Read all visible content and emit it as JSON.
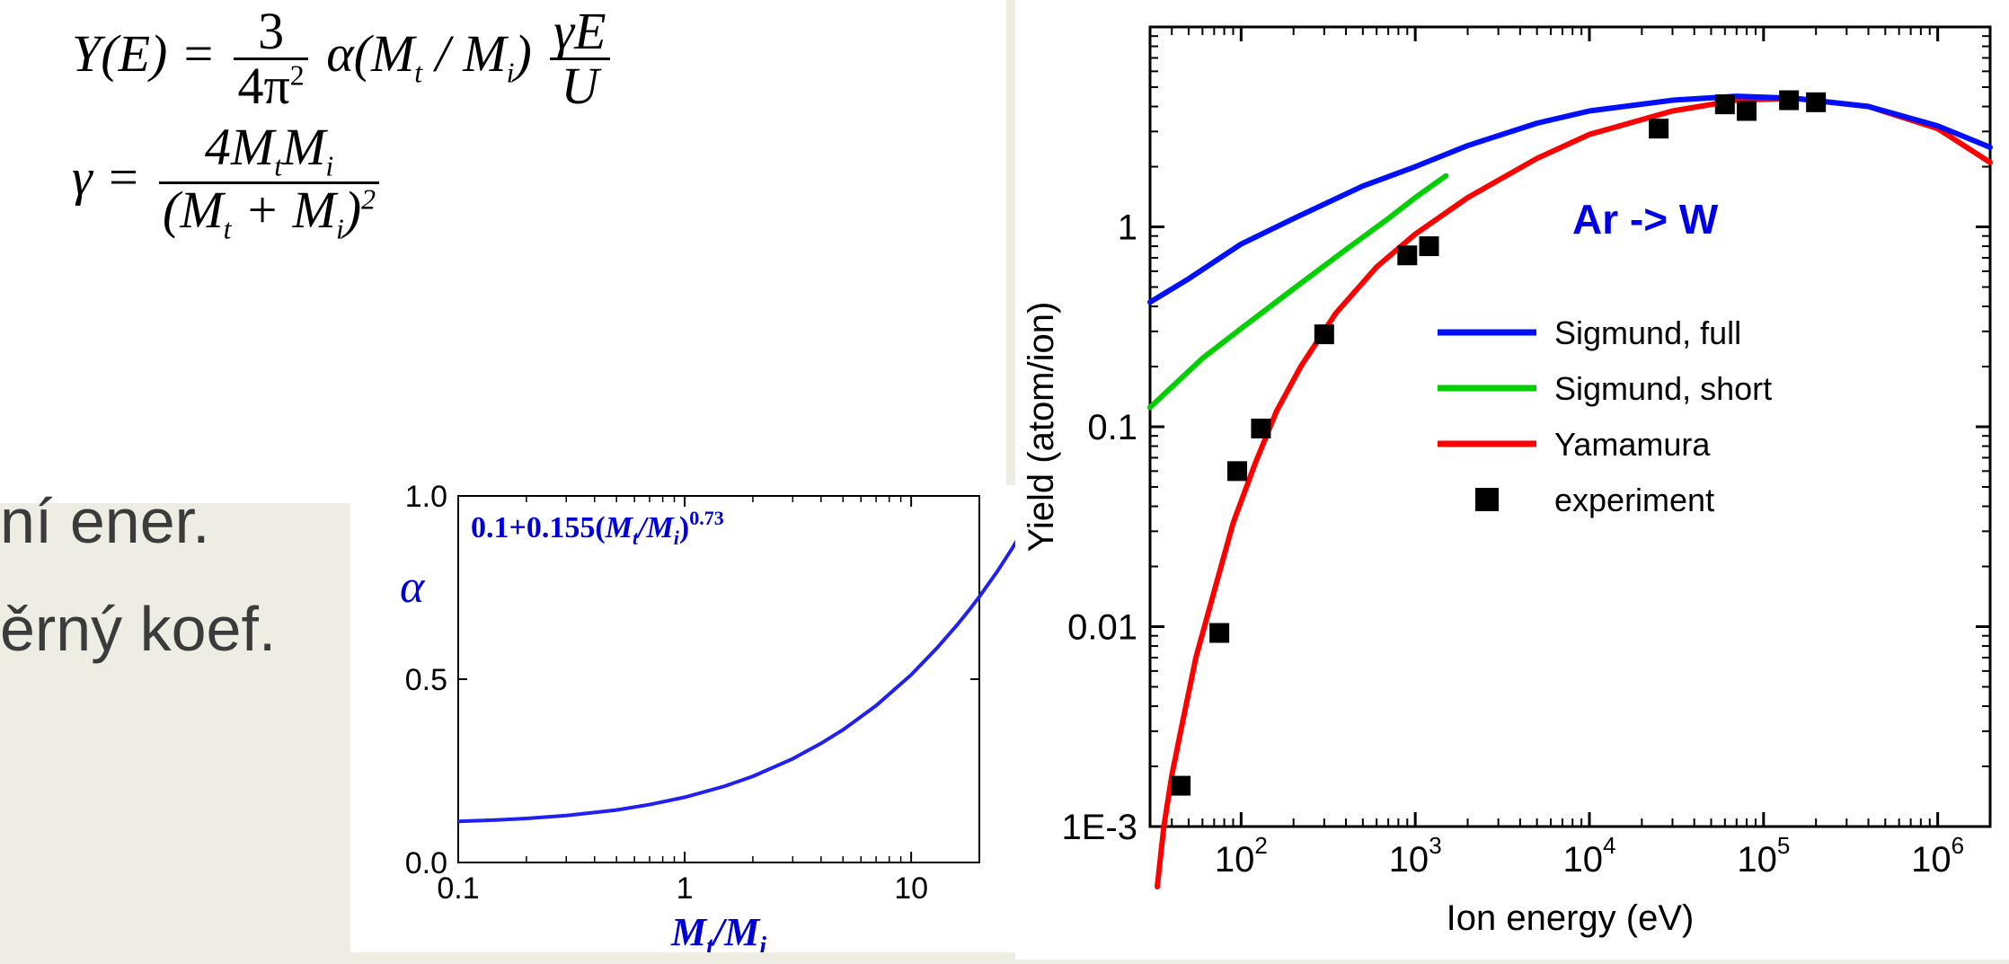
{
  "formulas": {
    "line1_left": "Y(E) =",
    "line1_frac_num": "3",
    "line1_frac_den": "4π",
    "line1_frac_den_sup": "2",
    "line1_mid": " α(M",
    "line1_mid_sub_t": "t",
    "line1_mid_sep": " / M",
    "line1_mid_sub_i": "i",
    "line1_mid_close": ") ",
    "line1_frac2_num": "γE",
    "line1_frac2_den": "U",
    "line2_left": "γ =",
    "line2_num_a": "4M",
    "line2_num_t": "t",
    "line2_num_b": "M",
    "line2_num_i": "i",
    "line2_den_a": "(M",
    "line2_den_t": "t",
    "line2_den_b": " + M",
    "line2_den_i": "i",
    "line2_den_c": ")",
    "line2_den_sup": "2"
  },
  "side": {
    "l1": "ní ener.",
    "l2": "ěrný koef."
  },
  "alpha_chart": {
    "type": "line",
    "symbol": "α",
    "formula_a": "0.1+0.155(",
    "formula_b": "M",
    "formula_b_sub": "t",
    "formula_c": "/M",
    "formula_c_sub": "i",
    "formula_d": ")",
    "formula_exp": "0.73",
    "xlabel_a": "M",
    "xlabel_a_sub": "t",
    "xlabel_b": "/M",
    "xlabel_b_sub": "i",
    "xlim": [
      0.1,
      20
    ],
    "ylim": [
      0.0,
      1.0
    ],
    "xticks": [
      0.1,
      1,
      10
    ],
    "xticklabels": [
      "0.1",
      "1",
      "10"
    ],
    "yticks": [
      0.0,
      0.5,
      1.0
    ],
    "yticklabels": [
      "0.0",
      "0.5",
      "1.0"
    ],
    "line_color": "#2020f0",
    "line_width": 4,
    "background": "#ffffff",
    "axis_color": "#000000",
    "label_color": "#0000d8",
    "curve": [
      [
        0.1,
        0.112
      ],
      [
        0.15,
        0.116
      ],
      [
        0.2,
        0.12
      ],
      [
        0.3,
        0.128
      ],
      [
        0.5,
        0.143
      ],
      [
        0.7,
        0.158
      ],
      [
        1.0,
        0.178
      ],
      [
        1.5,
        0.208
      ],
      [
        2.0,
        0.235
      ],
      [
        3.0,
        0.283
      ],
      [
        4.0,
        0.325
      ],
      [
        5.0,
        0.362
      ],
      [
        7.0,
        0.428
      ],
      [
        10.0,
        0.512
      ],
      [
        13.0,
        0.585
      ],
      [
        16.0,
        0.649
      ],
      [
        18.0,
        0.688
      ],
      [
        20.0,
        0.725
      ],
      [
        24.0,
        0.794
      ],
      [
        28.0,
        0.858
      ],
      [
        32.0,
        0.918
      ],
      [
        36.0,
        0.974
      ],
      [
        38.0,
        1.0
      ]
    ]
  },
  "main_chart": {
    "type": "line+scatter",
    "title": "Ar -> W",
    "title_color": "#0000e8",
    "title_fontsize": 46,
    "title_bold": true,
    "xlabel": "Ion energy (eV)",
    "ylabel": "Yield (atom/ion)",
    "label_fontsize": 40,
    "xlim": [
      30,
      2000000
    ],
    "ylim": [
      0.001,
      10
    ],
    "xticks": [
      100,
      1000,
      10000,
      100000,
      1000000
    ],
    "xticklabels": [
      "10",
      "10",
      "10",
      "10",
      "10"
    ],
    "xtick_sup": [
      "2",
      "3",
      "4",
      "5",
      "6"
    ],
    "yticks": [
      0.001,
      0.01,
      0.1,
      1
    ],
    "yticklabels": [
      "1E-3",
      "0.01",
      "0.1",
      "1"
    ],
    "background": "#ffffff",
    "axis_color": "#000000",
    "seriesA": {
      "name": "Sigmund, full",
      "color": "#0010ff",
      "width": 6,
      "pts": [
        [
          30,
          0.42
        ],
        [
          50,
          0.55
        ],
        [
          100,
          0.82
        ],
        [
          200,
          1.1
        ],
        [
          500,
          1.6
        ],
        [
          1000,
          2.0
        ],
        [
          2000,
          2.55
        ],
        [
          5000,
          3.3
        ],
        [
          10000,
          3.8
        ],
        [
          30000,
          4.3
        ],
        [
          70000,
          4.5
        ],
        [
          150000,
          4.4
        ],
        [
          400000,
          4.0
        ],
        [
          1000000,
          3.2
        ],
        [
          2000000,
          2.5
        ]
      ]
    },
    "seriesB": {
      "name": "Sigmund, short",
      "color": "#00d000",
      "width": 6,
      "pts": [
        [
          30,
          0.125
        ],
        [
          60,
          0.22
        ],
        [
          100,
          0.31
        ],
        [
          200,
          0.49
        ],
        [
          400,
          0.77
        ],
        [
          700,
          1.1
        ],
        [
          1000,
          1.4
        ],
        [
          1500,
          1.8
        ]
      ]
    },
    "seriesC": {
      "name": "Yamamura",
      "color": "#ff0000",
      "width": 6,
      "pts": [
        [
          33,
          0.0005
        ],
        [
          36,
          0.001
        ],
        [
          40,
          0.0018
        ],
        [
          45,
          0.003
        ],
        [
          55,
          0.007
        ],
        [
          70,
          0.015
        ],
        [
          90,
          0.033
        ],
        [
          120,
          0.065
        ],
        [
          160,
          0.12
        ],
        [
          220,
          0.2
        ],
        [
          350,
          0.37
        ],
        [
          600,
          0.63
        ],
        [
          1000,
          0.92
        ],
        [
          2000,
          1.4
        ],
        [
          5000,
          2.2
        ],
        [
          10000,
          2.9
        ],
        [
          30000,
          3.8
        ],
        [
          70000,
          4.3
        ],
        [
          150000,
          4.4
        ],
        [
          400000,
          4.0
        ],
        [
          1000000,
          3.1
        ],
        [
          2000000,
          2.1
        ]
      ]
    },
    "seriesD": {
      "name": "experiment",
      "marker": "square",
      "marker_color": "#000000",
      "marker_size": 22,
      "pts": [
        [
          45,
          0.0016
        ],
        [
          75,
          0.0093
        ],
        [
          95,
          0.06
        ],
        [
          130,
          0.098
        ],
        [
          300,
          0.29
        ],
        [
          900,
          0.72
        ],
        [
          1200,
          0.8
        ],
        [
          25000,
          3.1
        ],
        [
          60000,
          4.1
        ],
        [
          80000,
          3.8
        ],
        [
          140000,
          4.3
        ],
        [
          200000,
          4.2
        ]
      ]
    }
  }
}
